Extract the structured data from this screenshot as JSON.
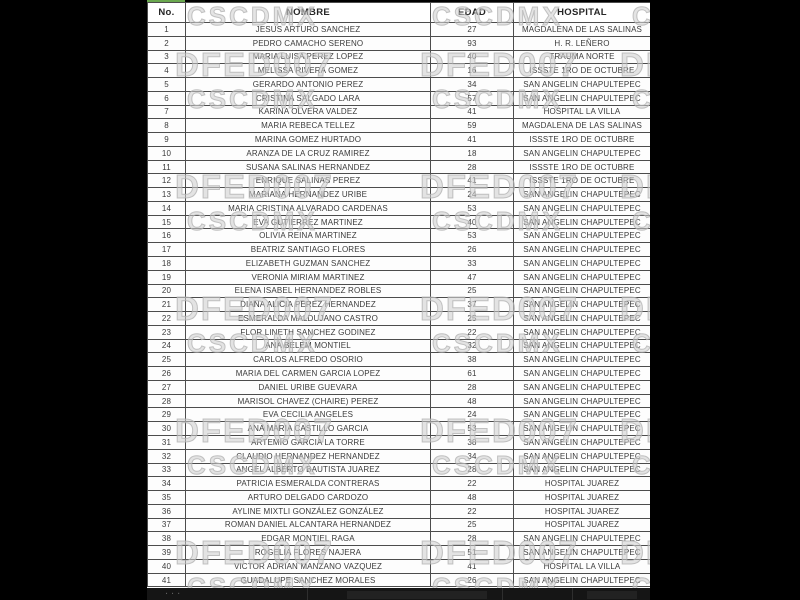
{
  "watermark": {
    "line1": "DFED007",
    "line2": "CSCDMX"
  },
  "footer": {
    "ellipsis": "..."
  },
  "colors": {
    "page_background": "#000000",
    "highlight_green": "#e2efda",
    "grid_border": "#4c4c4c",
    "tick_green": "#6aa84f"
  },
  "table": {
    "columns": [
      "No.",
      "NOMBRE",
      "EDAD",
      "HOSPITAL"
    ],
    "highlighted_row_no": "41",
    "rows": [
      [
        "1",
        "JESUS ARTURO SANCHEZ",
        "27",
        "MAGDALENA DE LAS SALINAS"
      ],
      [
        "2",
        "PEDRO CAMACHO SERENO",
        "93",
        "H. R. LEÑERO"
      ],
      [
        "3",
        "MARIA LUISA PEREZ LOPEZ",
        "40",
        "TRAUMA NORTE"
      ],
      [
        "4",
        "MELISSA RIVERA GOMEZ",
        "16",
        "ISSSTE 1RO DE OCTUBRE"
      ],
      [
        "5",
        "GERARDO ANTONIO PEREZ",
        "34",
        "SAN ANGELIN CHAPULTEPEC"
      ],
      [
        "6",
        "CRISTINA SALGADO LARA",
        "57",
        "SAN ANGELIN CHAPULTEPEC"
      ],
      [
        "7",
        "KARINA OLVERA VALDEZ",
        "41",
        "HOSPITAL LA VILLA"
      ],
      [
        "8",
        "MARIA REBECA  TELLEZ",
        "59",
        "MAGDALENA DE LAS SALINAS"
      ],
      [
        "9",
        "MARINA GOMEZ HURTADO",
        "41",
        "ISSSTE 1RO DE OCTUBRE"
      ],
      [
        "10",
        "ARANZA DE LA CRUZ RAMIREZ",
        "18",
        "SAN ANGELIN CHAPULTEPEC"
      ],
      [
        "11",
        "SUSANA SALINAS HERNANDEZ",
        "28",
        "ISSSTE 1RO DE OCTUBRE"
      ],
      [
        "12",
        "ENRIQUE SALINAS PEREZ",
        "41",
        "ISSSTE 1RO DE OCTUBRE"
      ],
      [
        "13",
        "MARIANA HERNANDEZ URIBE",
        "24",
        "SAN ANGELIN CHAPULTEPEC"
      ],
      [
        "14",
        "MARIA CRISTINA ALVARADO CARDENAS",
        "53",
        "SAN ANGELIN CHAPULTEPEC"
      ],
      [
        "15",
        "EVA GUTIERREZ MARTINEZ",
        "40",
        "SAN ANGELIN CHAPULTEPEC"
      ],
      [
        "16",
        "OLIVIA REINA MARTINEZ",
        "53",
        "SAN ANGELIN CHAPULTEPEC"
      ],
      [
        "17",
        "BEATRIZ SANTIAGO FLORES",
        "26",
        "SAN ANGELIN CHAPULTEPEC"
      ],
      [
        "18",
        "ELIZABETH GUZMAN SANCHEZ",
        "33",
        "SAN ANGELIN CHAPULTEPEC"
      ],
      [
        "19",
        "VERONIA MIRIAM MARTINEZ",
        "47",
        "SAN ANGELIN CHAPULTEPEC"
      ],
      [
        "20",
        "ELENA ISABEL HERNANDEZ ROBLES",
        "25",
        "SAN ANGELIN CHAPULTEPEC"
      ],
      [
        "21",
        "DIANA ALICIA PEREZ HERNANDEZ",
        "37",
        "SAN ANGELIN CHAPULTEPEC"
      ],
      [
        "22",
        "ESMERALDA MALDUJANO CASTRO",
        "25",
        "SAN ANGELIN CHAPULTEPEC"
      ],
      [
        "23",
        "FLOR LINETH SANCHEZ GODINEZ",
        "22",
        "SAN ANGELIN CHAPULTEPEC"
      ],
      [
        "24",
        "ANA BELEM MONTIEL",
        "32",
        "SAN ANGELIN CHAPULTEPEC"
      ],
      [
        "25",
        "CARLOS ALFREDO OSORIO",
        "38",
        "SAN ANGELIN CHAPULTEPEC"
      ],
      [
        "26",
        "MARIA DEL CARMEN GARCIA LOPEZ",
        "61",
        "SAN ANGELIN CHAPULTEPEC"
      ],
      [
        "27",
        "DANIEL URIBE GUEVARA",
        "28",
        "SAN ANGELIN CHAPULTEPEC"
      ],
      [
        "28",
        "MARISOL CHAVEZ (CHAIRE) PEREZ",
        "48",
        "SAN ANGELIN CHAPULTEPEC"
      ],
      [
        "29",
        "EVA CECILIA ANGELES",
        "24",
        "SAN ANGELIN CHAPULTEPEC"
      ],
      [
        "30",
        "ANA MARIA CASTILLO GARCIA",
        "53",
        "SAN ANGELIN CHAPULTEPEC"
      ],
      [
        "31",
        "ARTEMIO GARCIA LA TORRE",
        "38",
        "SAN ANGELIN CHAPULTEPEC"
      ],
      [
        "32",
        "CLAUDIO HERNANDEZ HERNANDEZ",
        "34",
        "SAN ANGELIN CHAPULTEPEC"
      ],
      [
        "33",
        "ANGEL ALBERTO BAUTISTA JUAREZ",
        "28",
        "SAN ANGELIN CHAPULTEPEC"
      ],
      [
        "34",
        "PATRICIA ESMERALDA CONTRERAS",
        "22",
        "HOSPITAL JUAREZ"
      ],
      [
        "35",
        "ARTURO DELGADO CARDOZO",
        "48",
        "HOSPITAL JUAREZ"
      ],
      [
        "36",
        "AYLINE MIXTLI GONZÁLEZ GONZÁLEZ",
        "22",
        "HOSPITAL JUAREZ"
      ],
      [
        "37",
        "ROMAN DANIEL ALCANTARA HERNANDEZ",
        "25",
        "HOSPITAL JUAREZ"
      ],
      [
        "38",
        "EDGAR MONTIEL RAGA",
        "28",
        "SAN ANGELIN CHAPULTEPEC"
      ],
      [
        "39",
        "ROGELIA FLORES NAJERA",
        "51",
        "SAN ANGELIN CHAPULTEPEC"
      ],
      [
        "40",
        "VICTOR ADRIAN MANZANO VAZQUEZ",
        "41",
        "HOSPITAL LA VILLA"
      ],
      [
        "41",
        "GUADALUPE SANCHEZ MORALES",
        "26",
        "SAN ANGELIN CHAPULTEPEC"
      ]
    ]
  }
}
